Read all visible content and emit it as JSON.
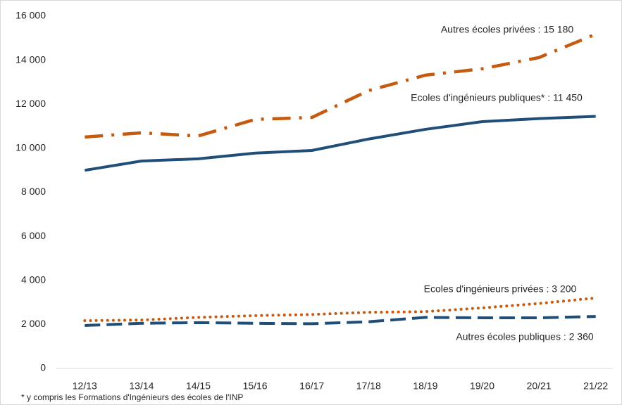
{
  "chart_data": {
    "type": "line",
    "categories": [
      "12/13",
      "13/14",
      "14/15",
      "15/16",
      "16/17",
      "17/18",
      "18/19",
      "19/20",
      "20/21",
      "21/22"
    ],
    "series": [
      {
        "color": "#1f4e79",
        "style": "solid",
        "values": [
          9000,
          9420,
          9520,
          9780,
          9900,
          10420,
          10860,
          11210,
          11350,
          11450
        ]
      },
      {
        "color": "#c55a11",
        "style": "dashdot",
        "values": [
          10510,
          10700,
          10560,
          11310,
          11400,
          12620,
          13320,
          13610,
          14120,
          15180
        ]
      },
      {
        "color": "#c55a11",
        "style": "dotted",
        "values": [
          2170,
          2200,
          2320,
          2400,
          2450,
          2550,
          2580,
          2750,
          2950,
          3200
        ]
      },
      {
        "color": "#1f4e79",
        "style": "dashed",
        "values": [
          1950,
          2050,
          2080,
          2050,
          2030,
          2120,
          2320,
          2300,
          2300,
          2360
        ]
      }
    ],
    "annotations": [
      "Autres écoles privées : 15 180",
      "Ecoles d'ingénieurs publiques* : 11 450",
      "Ecoles d'ingénieurs privées : 3 200",
      "Autres écoles publiques :  2 360"
    ],
    "footnote": "* y compris les Formations d'Ingénieurs des écoles de l'INP",
    "ylim": [
      0,
      16000
    ],
    "yticks": [
      0,
      {
        "value": 2000,
        "label": "2 000"
      },
      {
        "value": 4000,
        "label": "4 000"
      },
      {
        "value": 6000,
        "label": "6 000"
      },
      {
        "value": 8000,
        "label": "8 000"
      },
      {
        "value": 10000,
        "label": "10 000"
      },
      {
        "value": 12000,
        "label": "12 000"
      },
      {
        "value": 14000,
        "label": "14 000"
      },
      {
        "value": 16000,
        "label": "16 000"
      }
    ],
    "grid": false
  }
}
